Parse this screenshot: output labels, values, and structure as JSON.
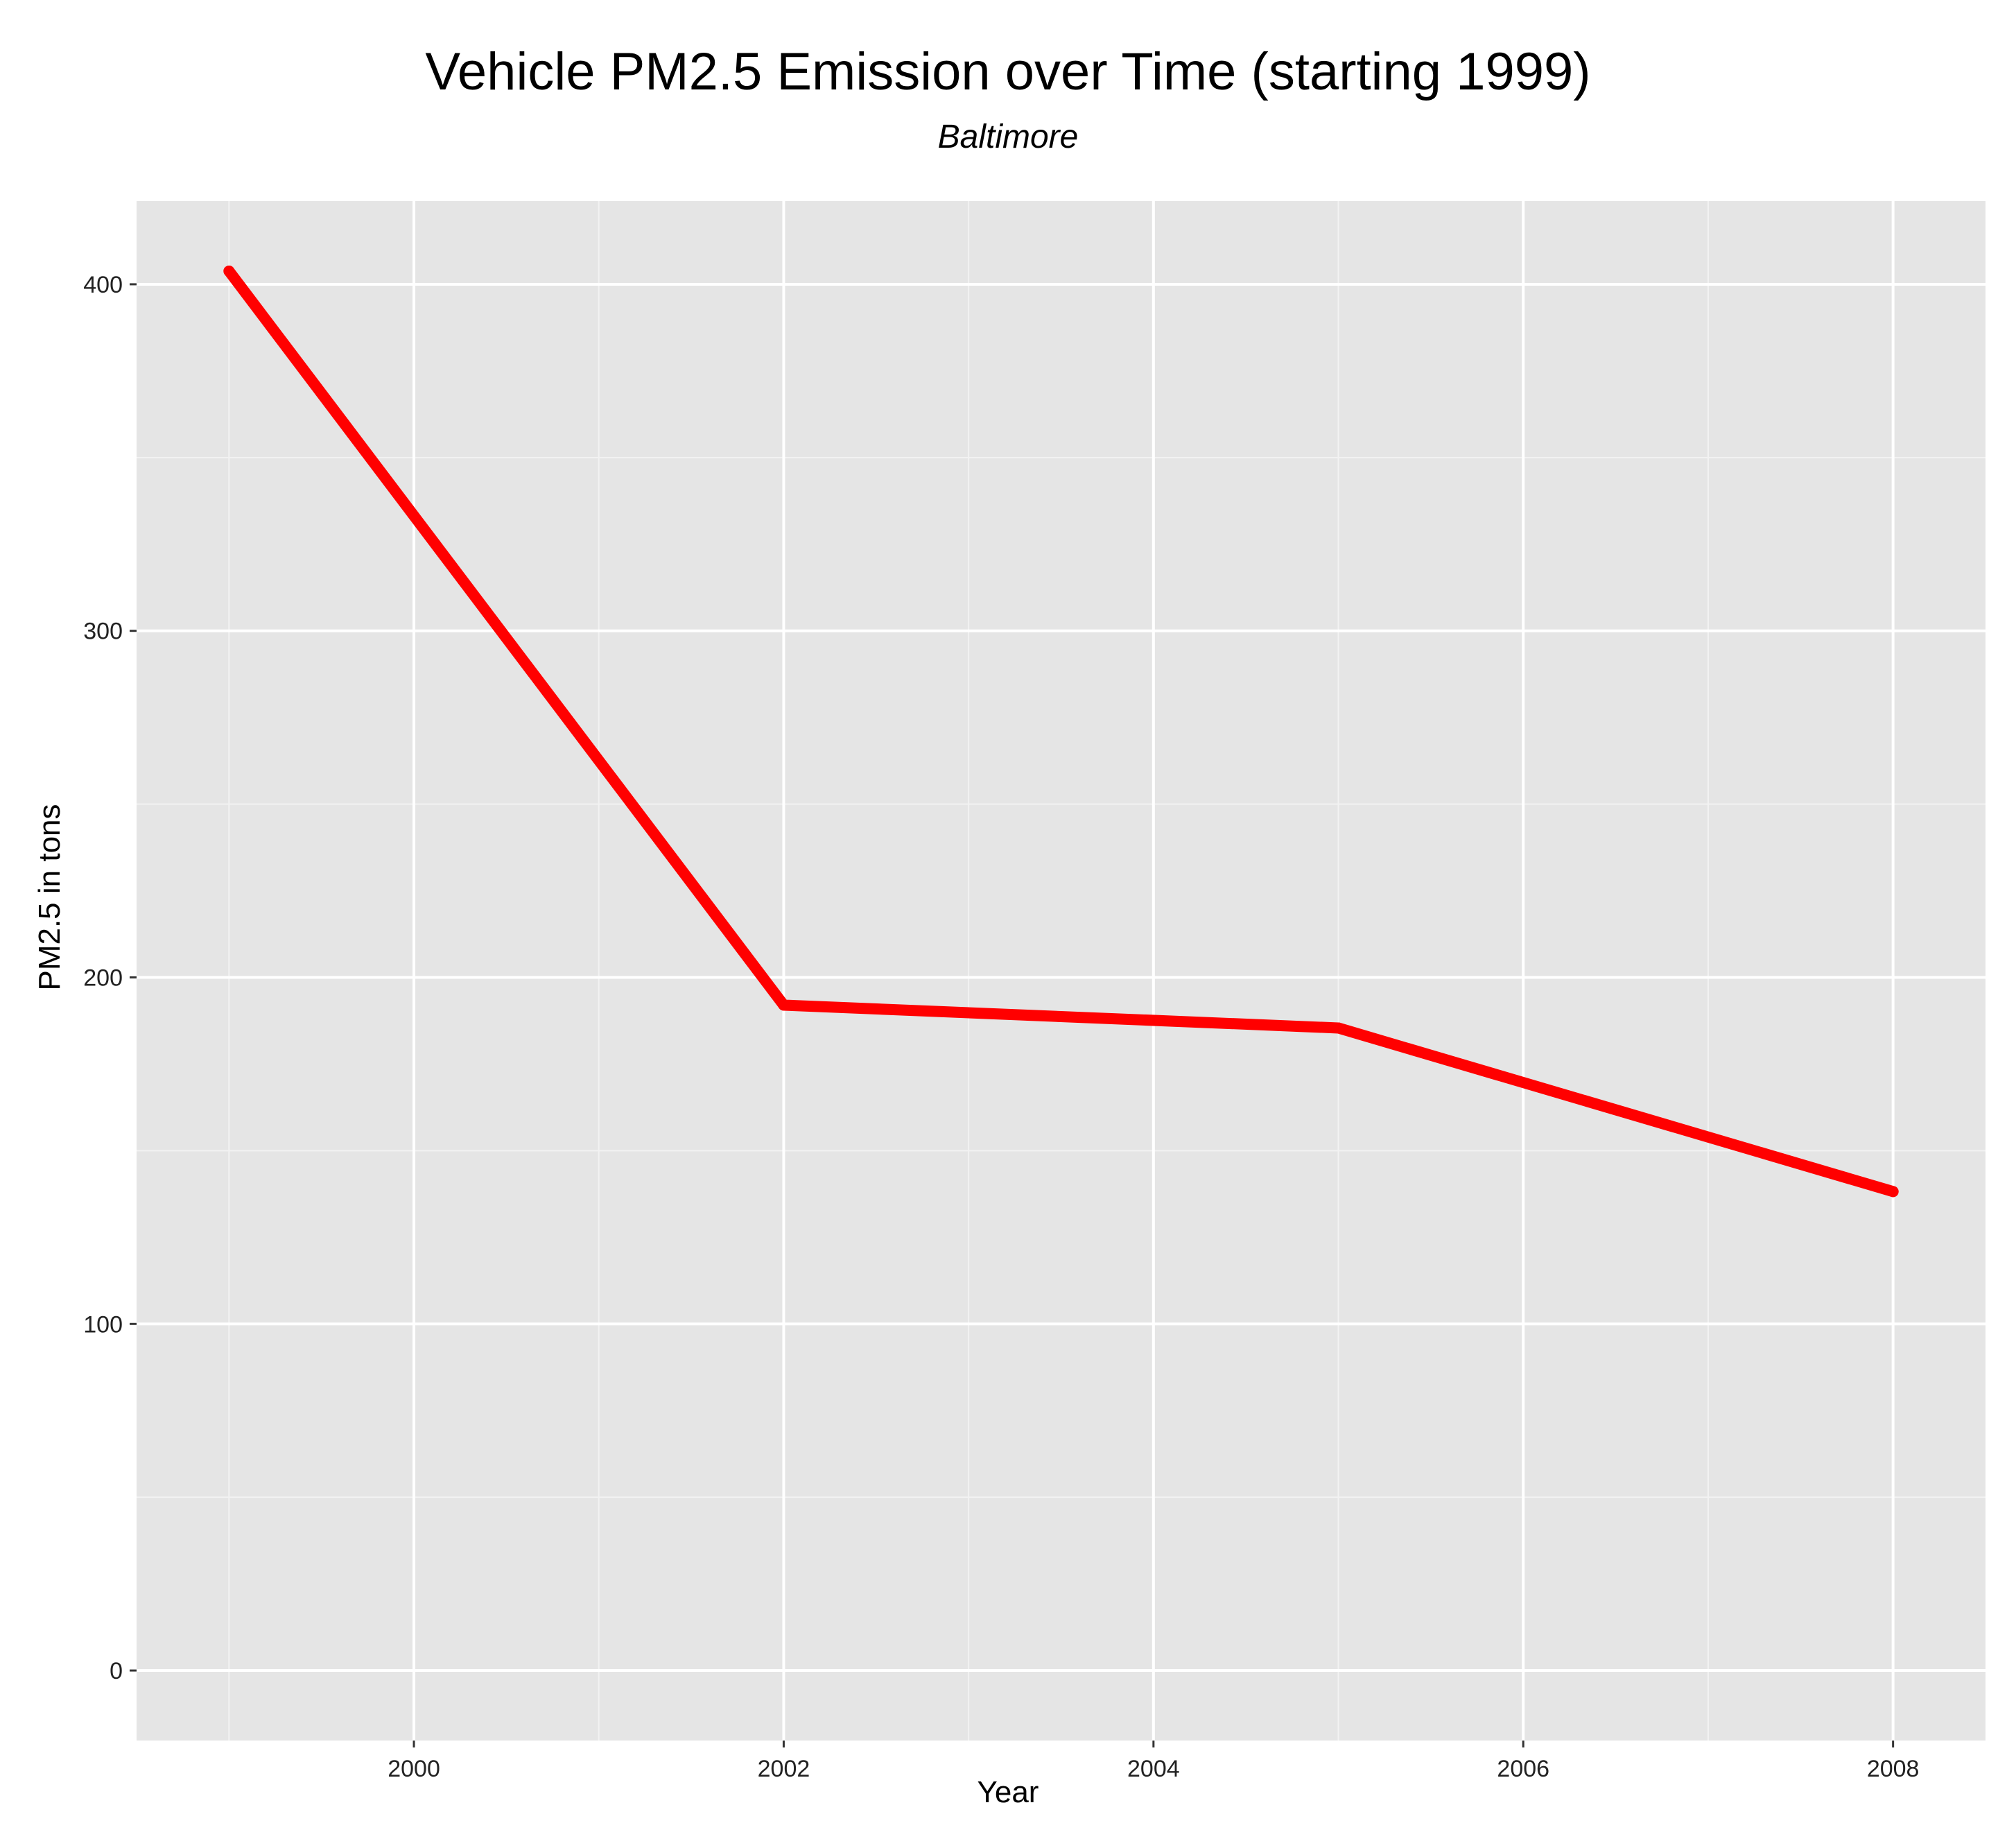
{
  "chart_data": {
    "type": "line",
    "title": "Vehicle PM2.5 Emission over Time (starting 1999)",
    "subtitle": "Baltimore",
    "xlabel": "Year",
    "ylabel": "PM2.5 in tons",
    "x": [
      1999,
      2002,
      2005,
      2008
    ],
    "series": [
      {
        "values": [
          403.8,
          192.0,
          185.4,
          138.2
        ],
        "color": "#ff0000"
      }
    ],
    "xlim": [
      1998.5,
      2008.5
    ],
    "ylim": [
      -20.2,
      424
    ],
    "x_ticks": [
      2000,
      2002,
      2004,
      2006,
      2008
    ],
    "x_tick_labels": [
      "2000",
      "2002",
      "2004",
      "2006",
      "2008"
    ],
    "y_ticks": [
      0,
      100,
      200,
      300,
      400
    ],
    "y_tick_labels": [
      "0",
      "100",
      "200",
      "300",
      "400"
    ],
    "grid": true,
    "panel_background": "#e5e5e5",
    "grid_color": "#ffffff",
    "legend": "none"
  }
}
